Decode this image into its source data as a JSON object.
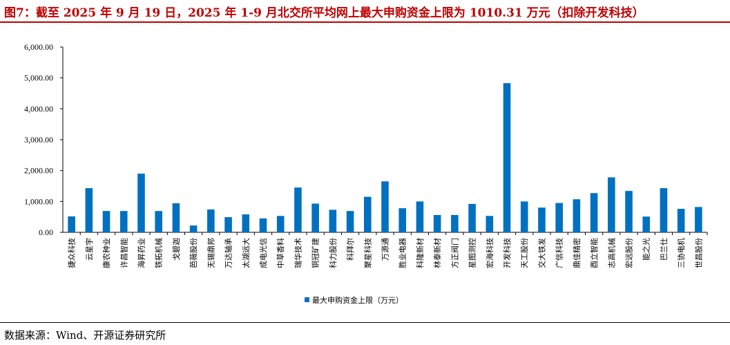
{
  "title": "图7：截至 2025 年 9 月 19 日，2025 年 1-9 月北交所平均网上最大申购资金上限为 1010.31 万元（扣除开发科技）",
  "source": "数据来源：Wind、开源证券研究所",
  "chart_data": {
    "type": "bar",
    "title": "",
    "xlabel": "",
    "ylabel": "",
    "ylim": [
      0,
      6000
    ],
    "yticks": [
      "0.00",
      "1,000.00",
      "2,000.00",
      "3,000.00",
      "4,000.00",
      "5,000.00",
      "6,000.00"
    ],
    "grid": false,
    "legend_position": "bottom",
    "bar_color": "#0070c0",
    "categories": [
      "捷众科技",
      "云星宇",
      "康农种业",
      "许昌智能",
      "海昇药业",
      "铁拓机械",
      "戈碧迦",
      "芭薇股份",
      "无锡鼎邦",
      "万达轴承",
      "太湖远大",
      "成电光信",
      "中草香料",
      "瑞华技术",
      "铜冠矿建",
      "科力股份",
      "科拜尔",
      "聚星科技",
      "万源通",
      "胜业电器",
      "科隆新材",
      "林泰新材",
      "方正阀门",
      "星图测控",
      "宏海科技",
      "开发科技",
      "天工股份",
      "交大铁发",
      "广信科技",
      "鼎佳精密",
      "酉立智能",
      "志高机械",
      "宏远股份",
      "能之光",
      "巴兰仕",
      "三协电机",
      "世昌股份"
    ],
    "series": [
      {
        "name": "最大申购资金上限（万元）",
        "values": [
          515,
          1430,
          690,
          690,
          1900,
          690,
          940,
          220,
          740,
          490,
          580,
          450,
          530,
          1450,
          930,
          730,
          690,
          1150,
          1650,
          780,
          1000,
          560,
          560,
          920,
          530,
          4830,
          1000,
          800,
          950,
          1070,
          1270,
          1780,
          1340,
          510,
          1430,
          760,
          820
        ]
      }
    ]
  }
}
